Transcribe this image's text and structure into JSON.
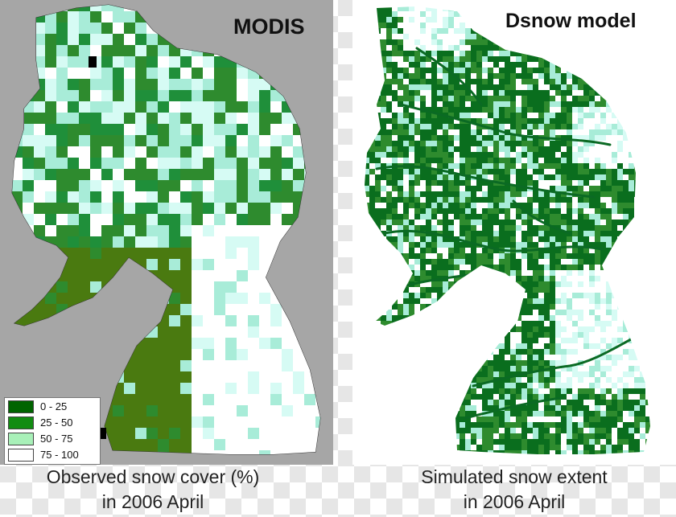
{
  "left_panel": {
    "title": "MODIS",
    "caption_line1": "Observed snow cover (%)",
    "caption_line2": "in 2006 April",
    "legend": [
      {
        "label": "0 - 25",
        "color": "#006400"
      },
      {
        "label": "25 - 50",
        "color": "#128c12"
      },
      {
        "label": "50 - 75",
        "color": "#a8f0b8"
      },
      {
        "label": "75 - 100",
        "color": "#ffffff"
      }
    ]
  },
  "right_panel": {
    "title": "Dsnow model",
    "caption_line1": "Simulated snow extent",
    "caption_line2": "in 2006 April"
  },
  "colors": {
    "low_snow": "#4a7a10",
    "mid_green": "#2e8b2e",
    "light_cyan": "#a8ecd8",
    "pale_cyan": "#d6fbf4",
    "no_snow_model": "#0a6e1e"
  }
}
